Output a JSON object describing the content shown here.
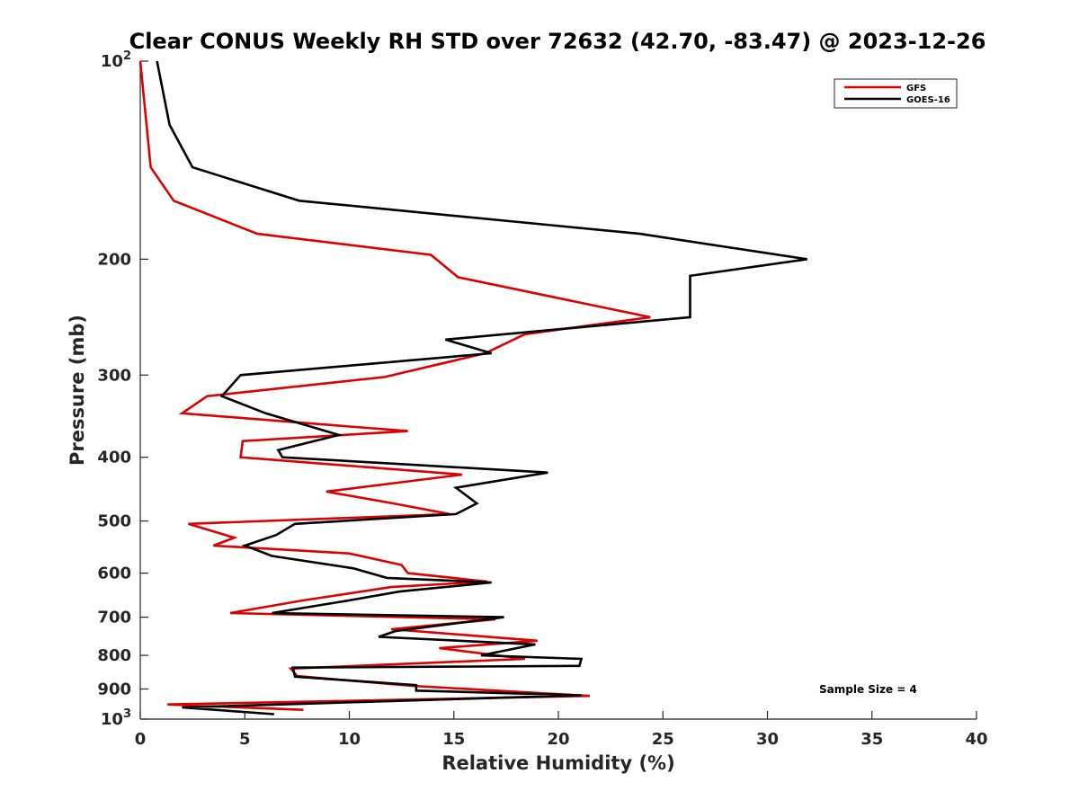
{
  "chart_data": {
    "type": "line",
    "title": "Clear CONUS Weekly RH STD over 72632 (42.70, -83.47) @ 2023-12-26",
    "xlabel": "Relative Humidity (%)",
    "ylabel": "Pressure (mb)",
    "xlim": [
      0,
      40
    ],
    "ylim": [
      100,
      1000
    ],
    "y_scale": "log",
    "y_reversed": true,
    "grid": false,
    "legend_position": "top-right",
    "annotation": "Sample Size = 4",
    "x_ticks": [
      {
        "value": 0,
        "label": "0"
      },
      {
        "value": 5,
        "label": "5"
      },
      {
        "value": 10,
        "label": "10"
      },
      {
        "value": 15,
        "label": "15"
      },
      {
        "value": 20,
        "label": "20"
      },
      {
        "value": 25,
        "label": "25"
      },
      {
        "value": 30,
        "label": "30"
      },
      {
        "value": 35,
        "label": "35"
      },
      {
        "value": 40,
        "label": "40"
      }
    ],
    "y_ticks": [
      {
        "value": 100,
        "label": "10",
        "sup": "2"
      },
      {
        "value": 200,
        "label": "200",
        "sup": ""
      },
      {
        "value": 300,
        "label": "300",
        "sup": ""
      },
      {
        "value": 400,
        "label": "400",
        "sup": ""
      },
      {
        "value": 500,
        "label": "500",
        "sup": ""
      },
      {
        "value": 600,
        "label": "600",
        "sup": ""
      },
      {
        "value": 700,
        "label": "700",
        "sup": ""
      },
      {
        "value": 800,
        "label": "800",
        "sup": ""
      },
      {
        "value": 900,
        "label": "900",
        "sup": ""
      },
      {
        "value": 1000,
        "label": "10",
        "sup": "3"
      }
    ],
    "series": [
      {
        "name": "GFS",
        "color": "#dd0000",
        "points": [
          {
            "x": 0.0,
            "p": 100
          },
          {
            "x": 0.3,
            "p": 125
          },
          {
            "x": 0.5,
            "p": 145
          },
          {
            "x": 1.6,
            "p": 163
          },
          {
            "x": 5.6,
            "p": 183
          },
          {
            "x": 13.9,
            "p": 197
          },
          {
            "x": 15.2,
            "p": 213
          },
          {
            "x": 24.4,
            "p": 245
          },
          {
            "x": 18.4,
            "p": 260
          },
          {
            "x": 16.5,
            "p": 278
          },
          {
            "x": 11.7,
            "p": 302
          },
          {
            "x": 3.2,
            "p": 323
          },
          {
            "x": 2.0,
            "p": 343
          },
          {
            "x": 12.8,
            "p": 365
          },
          {
            "x": 4.9,
            "p": 378
          },
          {
            "x": 4.8,
            "p": 400
          },
          {
            "x": 15.4,
            "p": 425
          },
          {
            "x": 8.9,
            "p": 451
          },
          {
            "x": 12.1,
            "p": 470
          },
          {
            "x": 14.8,
            "p": 488
          },
          {
            "x": 2.3,
            "p": 505
          },
          {
            "x": 4.5,
            "p": 530
          },
          {
            "x": 3.5,
            "p": 545
          },
          {
            "x": 10.0,
            "p": 560
          },
          {
            "x": 12.5,
            "p": 583
          },
          {
            "x": 12.8,
            "p": 600
          },
          {
            "x": 16.6,
            "p": 618
          },
          {
            "x": 12.0,
            "p": 630
          },
          {
            "x": 7.8,
            "p": 660
          },
          {
            "x": 4.3,
            "p": 690
          },
          {
            "x": 17.0,
            "p": 705
          },
          {
            "x": 12.0,
            "p": 730
          },
          {
            "x": 19.0,
            "p": 760
          },
          {
            "x": 14.3,
            "p": 780
          },
          {
            "x": 18.4,
            "p": 810
          },
          {
            "x": 7.2,
            "p": 838
          },
          {
            "x": 7.5,
            "p": 860
          },
          {
            "x": 13.0,
            "p": 890
          },
          {
            "x": 21.5,
            "p": 922
          },
          {
            "x": 1.3,
            "p": 950
          },
          {
            "x": 7.8,
            "p": 968
          }
        ]
      },
      {
        "name": "GOES-16",
        "color": "#000000",
        "points": [
          {
            "x": 0.8,
            "p": 100
          },
          {
            "x": 1.4,
            "p": 125
          },
          {
            "x": 2.5,
            "p": 145
          },
          {
            "x": 7.6,
            "p": 163
          },
          {
            "x": 23.9,
            "p": 183
          },
          {
            "x": 31.9,
            "p": 200
          },
          {
            "x": 26.3,
            "p": 212
          },
          {
            "x": 26.3,
            "p": 245
          },
          {
            "x": 14.6,
            "p": 265
          },
          {
            "x": 16.8,
            "p": 278
          },
          {
            "x": 4.8,
            "p": 300
          },
          {
            "x": 3.9,
            "p": 323
          },
          {
            "x": 6.0,
            "p": 343
          },
          {
            "x": 9.5,
            "p": 370
          },
          {
            "x": 6.6,
            "p": 390
          },
          {
            "x": 6.8,
            "p": 400
          },
          {
            "x": 19.5,
            "p": 422
          },
          {
            "x": 15.1,
            "p": 445
          },
          {
            "x": 16.1,
            "p": 470
          },
          {
            "x": 15.1,
            "p": 488
          },
          {
            "x": 7.4,
            "p": 505
          },
          {
            "x": 6.5,
            "p": 525
          },
          {
            "x": 5.0,
            "p": 545
          },
          {
            "x": 6.3,
            "p": 565
          },
          {
            "x": 10.2,
            "p": 590
          },
          {
            "x": 11.8,
            "p": 610
          },
          {
            "x": 16.8,
            "p": 620
          },
          {
            "x": 12.4,
            "p": 640
          },
          {
            "x": 10.0,
            "p": 660
          },
          {
            "x": 6.3,
            "p": 690
          },
          {
            "x": 17.4,
            "p": 700
          },
          {
            "x": 12.2,
            "p": 735
          },
          {
            "x": 11.4,
            "p": 750
          },
          {
            "x": 18.9,
            "p": 770
          },
          {
            "x": 16.3,
            "p": 800
          },
          {
            "x": 21.1,
            "p": 810
          },
          {
            "x": 21.0,
            "p": 830
          },
          {
            "x": 7.3,
            "p": 835
          },
          {
            "x": 7.4,
            "p": 862
          },
          {
            "x": 13.2,
            "p": 888
          },
          {
            "x": 13.2,
            "p": 905
          },
          {
            "x": 21.1,
            "p": 920
          },
          {
            "x": 2.0,
            "p": 960
          },
          {
            "x": 6.4,
            "p": 983
          }
        ]
      }
    ]
  }
}
